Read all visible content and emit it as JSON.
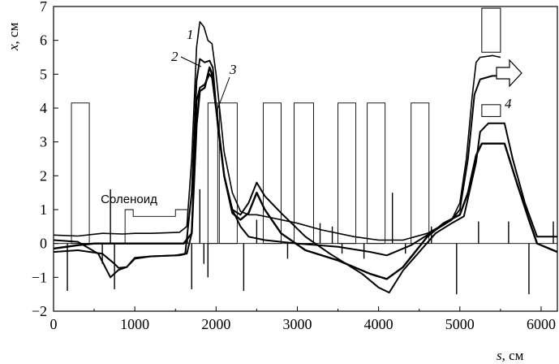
{
  "chart_data": {
    "type": "line",
    "xlabel": {
      "var": "s",
      "unit": ", см"
    },
    "ylabel": {
      "var": "x",
      "unit": ", см"
    },
    "xlim": [
      0,
      6200
    ],
    "ylim": [
      -2,
      7
    ],
    "x_ticks": [
      0,
      1000,
      2000,
      3000,
      4000,
      5000,
      6000
    ],
    "y_ticks": [
      -2,
      -1,
      0,
      1,
      2,
      3,
      4,
      5,
      6,
      7
    ],
    "y_tick_labels": [
      "−2",
      "−1",
      "0",
      "1",
      "2",
      "3",
      "4",
      "5",
      "6",
      "7"
    ],
    "grid": false,
    "series": [
      {
        "name": "1",
        "points": [
          [
            0,
            0.25
          ],
          [
            300,
            0.22
          ],
          [
            600,
            0.3
          ],
          [
            850,
            0.28
          ],
          [
            1000,
            0.3
          ],
          [
            1200,
            0.3
          ],
          [
            1550,
            0.33
          ],
          [
            1640,
            0.5
          ],
          [
            1700,
            2.5
          ],
          [
            1760,
            5.8
          ],
          [
            1800,
            6.55
          ],
          [
            1850,
            6.4
          ],
          [
            1900,
            6.0
          ],
          [
            1950,
            5.9
          ],
          [
            2000,
            5.0
          ],
          [
            2100,
            2.7
          ],
          [
            2200,
            1.5
          ],
          [
            2300,
            0.95
          ],
          [
            2400,
            0.85
          ],
          [
            2500,
            0.85
          ],
          [
            2700,
            0.75
          ],
          [
            3000,
            0.6
          ],
          [
            3300,
            0.4
          ],
          [
            3700,
            0.2
          ],
          [
            4000,
            0.1
          ],
          [
            4300,
            0.1
          ],
          [
            4600,
            0.3
          ],
          [
            4900,
            0.7
          ],
          [
            5000,
            1.2
          ],
          [
            5080,
            2.5
          ],
          [
            5150,
            4.3
          ],
          [
            5200,
            5.35
          ],
          [
            5250,
            5.5
          ],
          [
            5400,
            5.55
          ],
          [
            5500,
            5.5
          ]
        ]
      },
      {
        "name": "2",
        "points": [
          [
            0,
            0.1
          ],
          [
            300,
            0.05
          ],
          [
            550,
            -0.3
          ],
          [
            700,
            -1.0
          ],
          [
            800,
            -0.78
          ],
          [
            900,
            -0.7
          ],
          [
            1000,
            -0.42
          ],
          [
            1200,
            -0.38
          ],
          [
            1500,
            -0.35
          ],
          [
            1620,
            -0.3
          ],
          [
            1700,
            1.5
          ],
          [
            1760,
            4.8
          ],
          [
            1800,
            5.45
          ],
          [
            1860,
            5.35
          ],
          [
            1920,
            5.4
          ],
          [
            1960,
            5.2
          ],
          [
            2020,
            3.5
          ],
          [
            2100,
            2.0
          ],
          [
            2200,
            1.0
          ],
          [
            2300,
            0.5
          ],
          [
            2400,
            0.2
          ],
          [
            2600,
            0.1
          ],
          [
            3000,
            0
          ],
          [
            3500,
            -0.1
          ],
          [
            3900,
            -0.25
          ],
          [
            4100,
            -0.35
          ],
          [
            4400,
            -0.05
          ],
          [
            4700,
            0.4
          ],
          [
            4900,
            0.7
          ],
          [
            5000,
            1.0
          ],
          [
            5100,
            2.5
          ],
          [
            5180,
            4.4
          ],
          [
            5250,
            4.85
          ],
          [
            5400,
            4.95
          ],
          [
            5500,
            4.95
          ]
        ]
      },
      {
        "name": "3",
        "points": [
          [
            0,
            -0.25
          ],
          [
            300,
            -0.2
          ],
          [
            600,
            -0.3
          ],
          [
            750,
            -0.6
          ],
          [
            800,
            -0.72
          ],
          [
            900,
            -0.7
          ],
          [
            1000,
            -0.45
          ],
          [
            1200,
            -0.38
          ],
          [
            1550,
            -0.35
          ],
          [
            1640,
            -0.3
          ],
          [
            1700,
            0.3
          ],
          [
            1760,
            4.2
          ],
          [
            1800,
            4.6
          ],
          [
            1860,
            4.7
          ],
          [
            1920,
            5.0
          ],
          [
            1950,
            4.9
          ],
          [
            2000,
            4.0
          ],
          [
            2100,
            2.0
          ],
          [
            2200,
            1.0
          ],
          [
            2300,
            0.85
          ],
          [
            2400,
            1.2
          ],
          [
            2500,
            1.8
          ],
          [
            2600,
            1.4
          ],
          [
            2800,
            0.9
          ],
          [
            3100,
            0.2
          ],
          [
            3400,
            -0.3
          ],
          [
            3800,
            -0.9
          ],
          [
            4000,
            -1.3
          ],
          [
            4130,
            -1.45
          ],
          [
            4300,
            -0.8
          ],
          [
            4500,
            -0.25
          ],
          [
            4700,
            0.3
          ],
          [
            4900,
            0.6
          ],
          [
            5050,
            0.8
          ],
          [
            5200,
            2.4
          ],
          [
            5250,
            3.3
          ],
          [
            5350,
            3.55
          ],
          [
            5550,
            3.55
          ],
          [
            5650,
            2.5
          ],
          [
            5800,
            1.2
          ],
          [
            5950,
            0.2
          ],
          [
            6200,
            0.2
          ]
        ]
      },
      {
        "name": "4",
        "points": [
          [
            0,
            -0.15
          ],
          [
            300,
            -0.05
          ],
          [
            500,
            0
          ],
          [
            1000,
            0
          ],
          [
            1600,
            0
          ],
          [
            1700,
            0.3
          ],
          [
            1760,
            3.5
          ],
          [
            1800,
            4.5
          ],
          [
            1860,
            4.6
          ],
          [
            1920,
            5.2
          ],
          [
            1950,
            5.0
          ],
          [
            2000,
            4.0
          ],
          [
            2100,
            2.0
          ],
          [
            2200,
            0.9
          ],
          [
            2300,
            0.7
          ],
          [
            2400,
            0.9
          ],
          [
            2500,
            1.5
          ],
          [
            2600,
            1.0
          ],
          [
            2800,
            0.3
          ],
          [
            3100,
            -0.2
          ],
          [
            3500,
            -0.5
          ],
          [
            3900,
            -0.9
          ],
          [
            4100,
            -1.05
          ],
          [
            4300,
            -0.7
          ],
          [
            4600,
            0.2
          ],
          [
            4800,
            0.6
          ],
          [
            5000,
            0.85
          ],
          [
            5100,
            1.5
          ],
          [
            5200,
            2.6
          ],
          [
            5270,
            2.95
          ],
          [
            5450,
            2.95
          ],
          [
            5550,
            2.95
          ],
          [
            5700,
            1.8
          ],
          [
            5850,
            0.7
          ],
          [
            5950,
            0
          ],
          [
            6200,
            -0.25
          ]
        ]
      }
    ],
    "lattice_blocks": [
      [
        220,
        440
      ],
      [
        1900,
        2020
      ],
      [
        2040,
        2260
      ],
      [
        2580,
        2800
      ],
      [
        2960,
        3200
      ],
      [
        3500,
        3720
      ],
      [
        3860,
        4080
      ],
      [
        4400,
        4620
      ]
    ],
    "lattice_level": 4.15,
    "solenoid": {
      "x": [
        880,
        1650
      ],
      "level": 1.0,
      "label": "Соленоид"
    },
    "spikes": [
      [
        170,
        -1.4
      ],
      [
        600,
        -0.6
      ],
      [
        700,
        1.6
      ],
      [
        750,
        -1.35
      ],
      [
        1700,
        -1.35
      ],
      [
        1800,
        1.6
      ],
      [
        1850,
        -0.6
      ],
      [
        1900,
        -1.0
      ],
      [
        2340,
        -1.4
      ],
      [
        2500,
        0.7
      ],
      [
        2880,
        -0.45
      ],
      [
        3280,
        0.6
      ],
      [
        3430,
        0.5
      ],
      [
        3550,
        -0.3
      ],
      [
        3820,
        -0.45
      ],
      [
        4170,
        1.5
      ],
      [
        4330,
        -0.3
      ],
      [
        4650,
        0.5
      ],
      [
        4960,
        -1.5
      ],
      [
        5230,
        0.65
      ],
      [
        5600,
        0.65
      ],
      [
        5850,
        -1.5
      ],
      [
        6150,
        0.65
      ]
    ],
    "large_box": {
      "x": [
        5270,
        5500
      ],
      "y": [
        5.65,
        6.95
      ]
    },
    "small_box": {
      "x": [
        5270,
        5500
      ],
      "y": [
        3.75,
        4.1
      ]
    },
    "arrow_label": "4",
    "curve_labels": [
      "1",
      "2",
      "3",
      "4"
    ]
  }
}
